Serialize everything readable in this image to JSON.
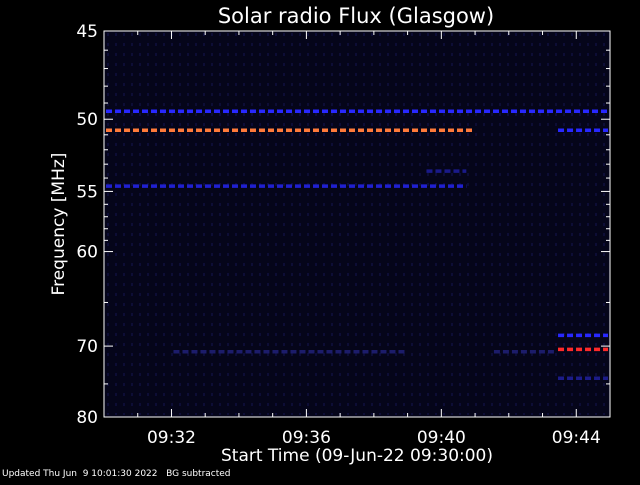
{
  "chart_data": {
    "type": "heatmap",
    "title": "Solar radio Flux (Glasgow)",
    "xlabel": "Start Time (09-Jun-22 09:30:00)",
    "ylabel": "Frequency [MHz]",
    "x_tick_labels": [
      "09:32",
      "09:36",
      "09:40",
      "09:44"
    ],
    "x_tick_minutes": [
      2,
      6,
      10,
      14
    ],
    "xlim_minutes": [
      0,
      15
    ],
    "y_tick_labels": [
      "45",
      "50",
      "55",
      "60",
      "70",
      "80"
    ],
    "y_ticks_mhz": [
      45,
      50,
      55,
      60,
      70,
      80
    ],
    "ylim_mhz": [
      45,
      80
    ],
    "y_scale": "reciprocal",
    "background_color": "#000000",
    "colors": {
      "weak": "#1a1a5e",
      "medium": "#2020e0",
      "strong": "#ff6a33",
      "peak": "#ff2020"
    },
    "emission_bands": [
      {
        "freq_mhz": 49.5,
        "t_start_min": 0.0,
        "t_end_min": 15.0,
        "color": "#2828ff"
      },
      {
        "freq_mhz": 50.7,
        "t_start_min": 0.0,
        "t_end_min": 11.0,
        "color": "#ff7a3a"
      },
      {
        "freq_mhz": 50.7,
        "t_start_min": 13.4,
        "t_end_min": 15.0,
        "color": "#2828ff"
      },
      {
        "freq_mhz": 54.6,
        "t_start_min": 0.0,
        "t_end_min": 10.8,
        "color": "#2020d0"
      },
      {
        "freq_mhz": 53.5,
        "t_start_min": 9.5,
        "t_end_min": 10.8,
        "color": "#1a1a8a"
      },
      {
        "freq_mhz": 68.7,
        "t_start_min": 13.4,
        "t_end_min": 15.0,
        "color": "#2828ff"
      },
      {
        "freq_mhz": 70.4,
        "t_start_min": 13.4,
        "t_end_min": 15.0,
        "color": "#ff2a2a"
      },
      {
        "freq_mhz": 70.7,
        "t_start_min": 2.0,
        "t_end_min": 9.0,
        "color": "#1c1c6a"
      },
      {
        "freq_mhz": 70.7,
        "t_start_min": 11.5,
        "t_end_min": 13.4,
        "color": "#1c1c6a"
      },
      {
        "freq_mhz": 74.2,
        "t_start_min": 13.4,
        "t_end_min": 15.0,
        "color": "#1c1c8a"
      }
    ]
  },
  "footer": {
    "updated": "Updated Thu Jun  9 10:01:30 2022",
    "bg_note": "BG subtracted"
  }
}
